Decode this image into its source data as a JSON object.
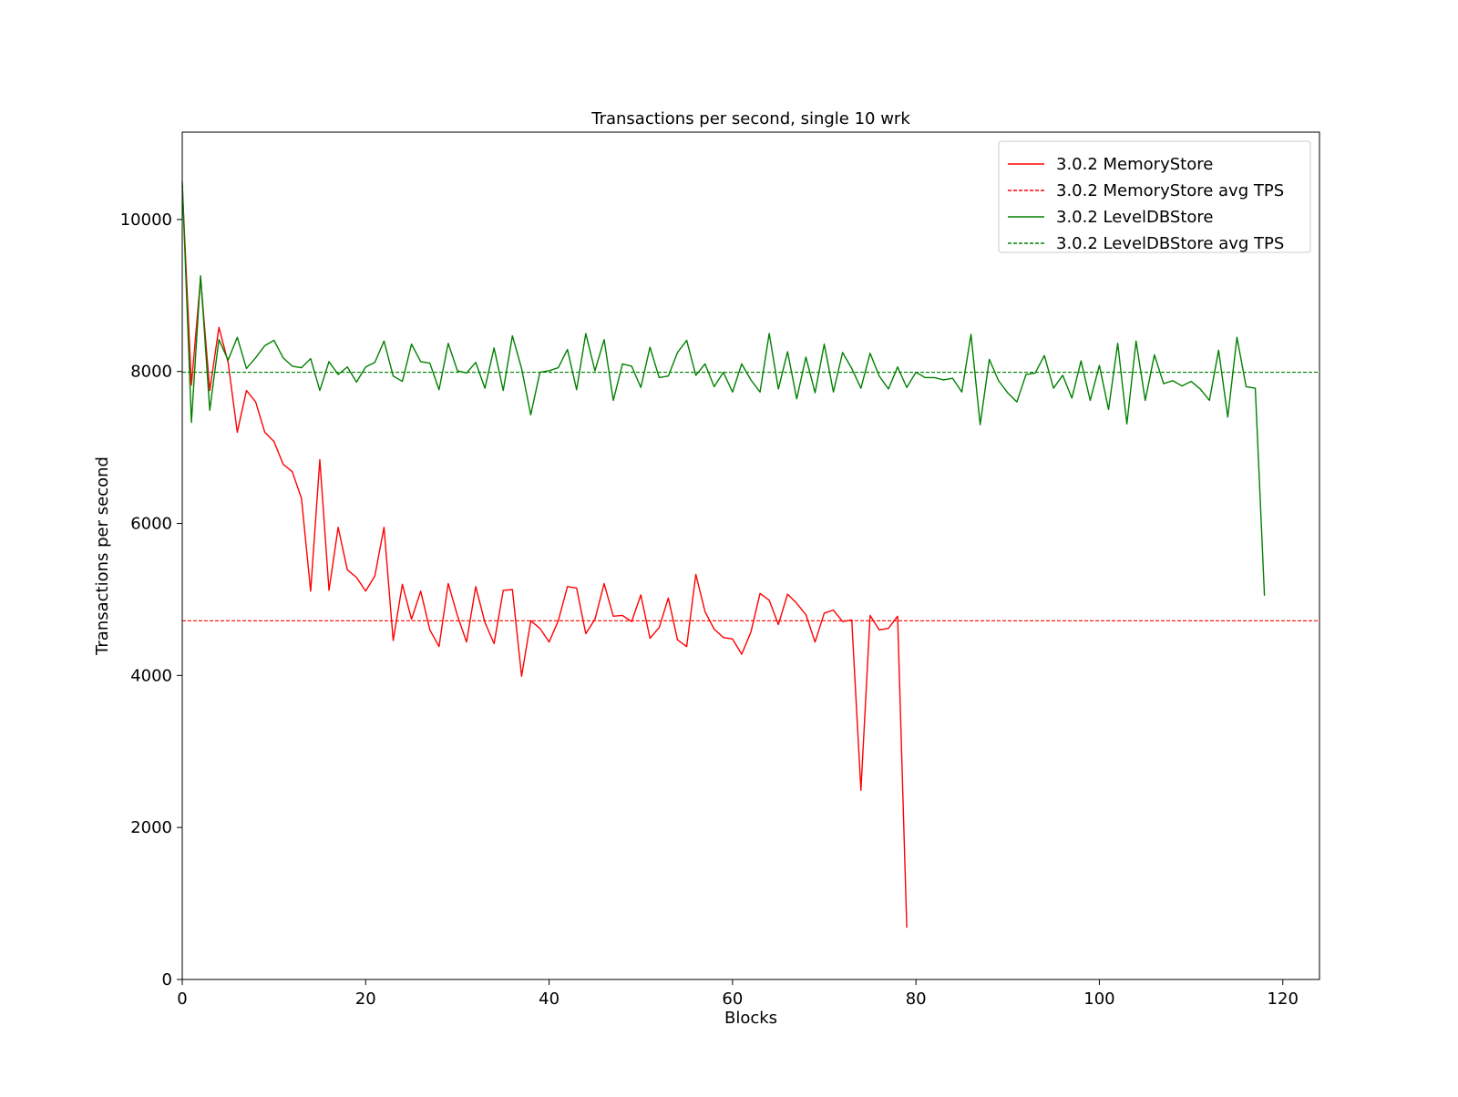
{
  "chart_data": {
    "type": "line",
    "title": "Transactions per second, single 10 wrk",
    "xlabel": "Blocks",
    "ylabel": "Transactions per second",
    "xlim": [
      0,
      124
    ],
    "ylim": [
      0,
      11150
    ],
    "xticks": [
      0,
      20,
      40,
      60,
      80,
      100,
      120
    ],
    "yticks": [
      0,
      2000,
      4000,
      6000,
      8000,
      10000
    ],
    "grid": false,
    "legend_position": "top-right",
    "series": [
      {
        "name": "3.0.2 MemoryStore",
        "color": "#ff0000",
        "style": "solid",
        "values": [
          10450,
          7820,
          9230,
          7750,
          8580,
          8120,
          7200,
          7750,
          7600,
          7200,
          7080,
          6780,
          6680,
          6330,
          5110,
          6840,
          5120,
          5950,
          5390,
          5290,
          5110,
          5310,
          5950,
          4460,
          5200,
          4740,
          5110,
          4600,
          4380,
          5210,
          4790,
          4440,
          5170,
          4700,
          4420,
          5120,
          5130,
          3990,
          4720,
          4620,
          4440,
          4720,
          5170,
          5150,
          4550,
          4740,
          5210,
          4780,
          4790,
          4710,
          5060,
          4490,
          4630,
          5020,
          4470,
          4380,
          5330,
          4840,
          4610,
          4500,
          4480,
          4280,
          4570,
          5080,
          4990,
          4670,
          5070,
          4950,
          4800,
          4440,
          4820,
          4860,
          4710,
          4730,
          2490,
          4790,
          4600,
          4620,
          4780,
          680
        ]
      },
      {
        "name": "3.0.2 MemoryStore avg TPS",
        "color": "#ff0000",
        "style": "dashed",
        "constant": 4720
      },
      {
        "name": "3.0.2 LevelDBStore",
        "color": "#008000",
        "style": "solid",
        "values": [
          10500,
          7330,
          9260,
          7490,
          8420,
          8150,
          8450,
          8040,
          8180,
          8340,
          8410,
          8180,
          8070,
          8050,
          8170,
          7750,
          8130,
          7960,
          8060,
          7860,
          8060,
          8120,
          8400,
          7940,
          7870,
          8360,
          8130,
          8110,
          7760,
          8370,
          8010,
          7980,
          8120,
          7780,
          8310,
          7750,
          8470,
          8040,
          7430,
          7990,
          8010,
          8050,
          8290,
          7760,
          8500,
          8010,
          8420,
          7620,
          8100,
          8070,
          7790,
          8320,
          7920,
          7940,
          8250,
          8410,
          7950,
          8100,
          7800,
          7990,
          7730,
          8100,
          7890,
          7730,
          8500,
          7770,
          8260,
          7640,
          8190,
          7720,
          8360,
          7730,
          8250,
          8040,
          7780,
          8240,
          7940,
          7770,
          8060,
          7790,
          7990,
          7920,
          7920,
          7890,
          7910,
          7730,
          8490,
          7300,
          8160,
          7880,
          7720,
          7600,
          7960,
          7980,
          8210,
          7780,
          7950,
          7650,
          8140,
          7620,
          8080,
          7500,
          8370,
          7310,
          8400,
          7620,
          8220,
          7840,
          7880,
          7810,
          7870,
          7770,
          7620,
          8280,
          7400,
          8450,
          7800,
          7780,
          5050
        ]
      },
      {
        "name": "3.0.2 LevelDBStore avg TPS",
        "color": "#008000",
        "style": "dashed",
        "constant": 7990
      }
    ]
  }
}
